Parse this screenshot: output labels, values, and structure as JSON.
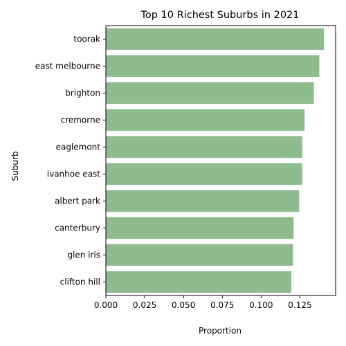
{
  "chart_data": {
    "type": "bar",
    "orientation": "horizontal",
    "title": "Top 10 Richest Suburbs in 2021",
    "xlabel": "Proportion",
    "ylabel": "Suburb",
    "categories": [
      "toorak",
      "east melbourne",
      "brighton",
      "cremorne",
      "eaglemont",
      "ivanhoe east",
      "albert park",
      "canterbury",
      "glen iris",
      "clifton hill"
    ],
    "values": [
      0.1405,
      0.1375,
      0.134,
      0.128,
      0.1265,
      0.1265,
      0.1245,
      0.121,
      0.1205,
      0.1195
    ],
    "xlim": [
      0,
      0.148
    ],
    "xticks": [
      0.0,
      0.025,
      0.05,
      0.075,
      0.1,
      0.125
    ],
    "xtick_labels": [
      "0.000",
      "0.025",
      "0.050",
      "0.075",
      "0.100",
      "0.125"
    ],
    "bar_color": "#8fbc8f",
    "grid": false
  }
}
